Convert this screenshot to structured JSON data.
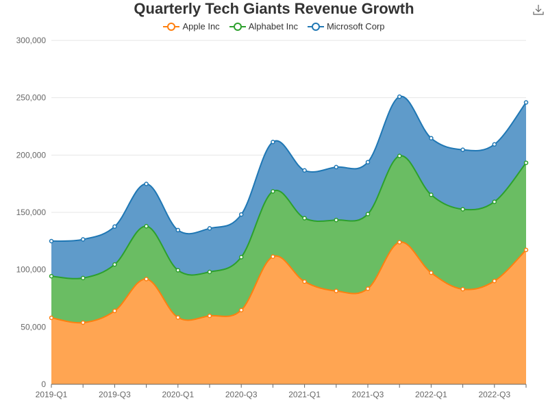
{
  "chart_data": {
    "type": "area",
    "stacked": true,
    "smooth": true,
    "title": "Quarterly Tech Giants Revenue Growth",
    "xlabel": "",
    "ylabel": "",
    "ylim": [
      0,
      300000
    ],
    "y_ticks": [
      "0",
      "50,000",
      "100,000",
      "150,000",
      "200,000",
      "250,000",
      "300,000"
    ],
    "y_tick_values": [
      0,
      50000,
      100000,
      150000,
      200000,
      250000,
      300000
    ],
    "x": [
      "2019-Q1",
      "2019-Q2",
      "2019-Q3",
      "2019-Q4",
      "2020-Q1",
      "2020-Q2",
      "2020-Q3",
      "2020-Q4",
      "2021-Q1",
      "2021-Q2",
      "2021-Q3",
      "2021-Q4",
      "2022-Q1",
      "2022-Q2",
      "2022-Q3",
      "2022-Q4"
    ],
    "x_tick_labels": [
      {
        "index": 0,
        "label": "2019-Q1"
      },
      {
        "index": 2,
        "label": "2019-Q3"
      },
      {
        "index": 4,
        "label": "2020-Q1"
      },
      {
        "index": 6,
        "label": "2020-Q3"
      },
      {
        "index": 8,
        "label": "2021-Q1"
      },
      {
        "index": 10,
        "label": "2021-Q3"
      },
      {
        "index": 12,
        "label": "2022-Q1"
      },
      {
        "index": 14,
        "label": "2022-Q3"
      }
    ],
    "legend_position": "top-center",
    "grid": true,
    "series": [
      {
        "name": "Apple Inc",
        "color": "#ff7f0e",
        "fill": "#ffa552",
        "values": [
          58000,
          53800,
          64000,
          91800,
          58300,
          59700,
          64700,
          111400,
          89600,
          81400,
          83400,
          123900,
          97300,
          83000,
          90100,
          117200
        ]
      },
      {
        "name": "Alphabet Inc",
        "color": "#2ca02c",
        "fill": "#6abd63",
        "values": [
          36300,
          38900,
          40500,
          46100,
          41200,
          38300,
          46200,
          56900,
          55300,
          61900,
          65100,
          75300,
          68000,
          69700,
          69100,
          76000
        ]
      },
      {
        "name": "Microsoft Corp",
        "color": "#1f77b4",
        "fill": "#5f9bca",
        "values": [
          30600,
          33700,
          33100,
          36900,
          35000,
          38000,
          37200,
          43100,
          41700,
          46200,
          45300,
          51700,
          49400,
          51900,
          50100,
          52700
        ]
      }
    ]
  },
  "icons": {
    "download": "download-icon"
  }
}
